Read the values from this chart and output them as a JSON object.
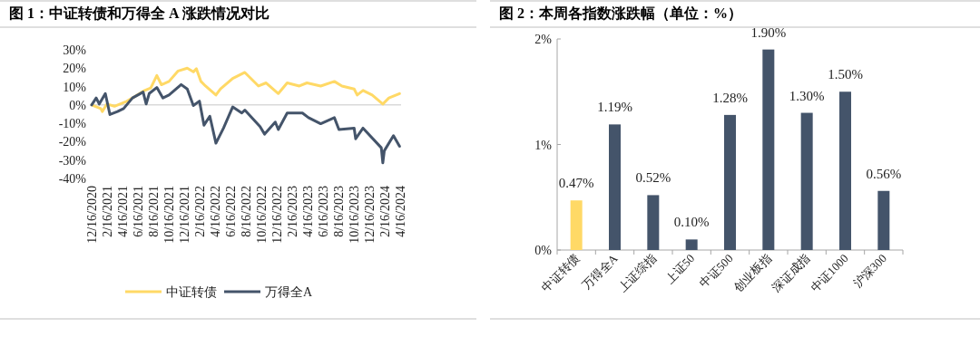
{
  "chart_data": [
    {
      "type": "line",
      "title": "图 1：中证转债和万得全 A 涨跌情况对比",
      "xlim": [
        "2020-12-16",
        "2024-04-19"
      ],
      "xticks": [
        {
          "value": "2020-12-16",
          "label": "12/16/2020"
        },
        {
          "value": "2021-02-16",
          "label": "2/16/2021"
        },
        {
          "value": "2021-04-16",
          "label": "4/16/2021"
        },
        {
          "value": "2021-06-16",
          "label": "6/16/2021"
        },
        {
          "value": "2021-08-16",
          "label": "8/16/2021"
        },
        {
          "value": "2021-10-16",
          "label": "10/16/2021"
        },
        {
          "value": "2021-12-16",
          "label": "12/16/2021"
        },
        {
          "value": "2022-02-16",
          "label": "2/16/2022"
        },
        {
          "value": "2022-04-16",
          "label": "4/16/2022"
        },
        {
          "value": "2022-06-16",
          "label": "6/16/2022"
        },
        {
          "value": "2022-08-16",
          "label": "8/16/2022"
        },
        {
          "value": "2022-10-16",
          "label": "10/16/2022"
        },
        {
          "value": "2022-12-16",
          "label": "12/16/2022"
        },
        {
          "value": "2023-02-16",
          "label": "2/16/2023"
        },
        {
          "value": "2023-04-16",
          "label": "4/16/2023"
        },
        {
          "value": "2023-06-16",
          "label": "6/16/2023"
        },
        {
          "value": "2023-08-16",
          "label": "8/16/2023"
        },
        {
          "value": "2023-10-16",
          "label": "10/16/2023"
        },
        {
          "value": "2023-12-16",
          "label": "12/16/2023"
        },
        {
          "value": "2024-02-16",
          "label": "2/16/2024"
        },
        {
          "value": "2024-04-16",
          "label": "4/16/2024"
        }
      ],
      "ylim": [
        -40,
        30
      ],
      "yticks": [
        {
          "value": -40,
          "label": "-40%"
        },
        {
          "value": -30,
          "label": "-30%"
        },
        {
          "value": -20,
          "label": "-20%"
        },
        {
          "value": -10,
          "label": "-10%"
        },
        {
          "value": 0,
          "label": "0%"
        },
        {
          "value": 10,
          "label": "10%"
        },
        {
          "value": 20,
          "label": "20%"
        },
        {
          "value": 30,
          "label": "30%"
        }
      ],
      "legend": "bottom",
      "series": [
        {
          "name": "中证转债",
          "color": "#ffd966",
          "x": [
            "2020-12-16",
            "2021-01-21",
            "2021-01-27",
            "2021-02-14",
            "2021-03-16",
            "2021-05-03",
            "2021-05-26",
            "2021-07-13",
            "2021-08-06",
            "2021-08-30",
            "2021-09-17",
            "2021-10-17",
            "2021-11-22",
            "2021-12-28",
            "2022-01-21",
            "2022-02-02",
            "2022-02-20",
            "2022-03-10",
            "2022-04-20",
            "2022-05-08",
            "2022-06-25",
            "2022-08-12",
            "2022-10-05",
            "2022-11-04",
            "2022-12-22",
            "2023-01-26",
            "2023-03-15",
            "2023-04-14",
            "2023-06-07",
            "2023-07-31",
            "2023-08-30",
            "2023-10-17",
            "2023-10-29",
            "2023-11-21",
            "2023-12-27",
            "2024-02-07",
            "2024-03-02",
            "2024-04-13"
          ],
          "values": [
            0,
            -2,
            -3.6,
            0.5,
            -0.7,
            2,
            3.8,
            7.9,
            9.2,
            16,
            11,
            12.8,
            18.5,
            20,
            18,
            19.7,
            12.8,
            10.3,
            5.4,
            8.7,
            14.4,
            17.7,
            10.3,
            12,
            6.2,
            12,
            10.3,
            12,
            10.3,
            12.8,
            10.3,
            8.7,
            5.4,
            7.9,
            5.4,
            0.5,
            3.8,
            6.2
          ]
        },
        {
          "name": "万得全A",
          "color": "#44546a",
          "x": [
            "2020-12-16",
            "2021-01-03",
            "2021-01-15",
            "2021-02-08",
            "2021-02-26",
            "2021-03-28",
            "2021-04-21",
            "2021-05-26",
            "2021-07-07",
            "2021-07-19",
            "2021-07-31",
            "2021-08-30",
            "2021-09-23",
            "2021-10-17",
            "2021-12-04",
            "2021-12-28",
            "2022-01-21",
            "2022-02-14",
            "2022-03-04",
            "2022-03-27",
            "2022-04-20",
            "2022-05-20",
            "2022-06-25",
            "2022-07-31",
            "2022-08-12",
            "2022-10-11",
            "2022-10-29",
            "2022-12-10",
            "2022-12-22",
            "2023-01-26",
            "2023-03-27",
            "2023-04-20",
            "2023-06-07",
            "2023-07-31",
            "2023-08-18",
            "2023-10-17",
            "2023-10-23",
            "2023-11-21",
            "2024-02-01",
            "2024-02-07",
            "2024-02-13",
            "2024-03-20",
            "2024-04-13"
          ],
          "values": [
            0,
            3.8,
            0.5,
            6.2,
            -5.2,
            -3.6,
            -2,
            3.8,
            7,
            0.5,
            6.2,
            9.5,
            3.8,
            5.4,
            11.1,
            8.7,
            -0.3,
            2.1,
            -11,
            -6.1,
            -20.8,
            -12.6,
            -1.1,
            -4.4,
            -2.8,
            -11.8,
            -15.9,
            -9.3,
            -13.4,
            -4.4,
            -4.4,
            -6.9,
            -10.2,
            -6.9,
            -13.4,
            -12.6,
            -18.4,
            -12.6,
            -23.3,
            -31.5,
            -24.9,
            -16.7,
            -22.5
          ]
        }
      ]
    },
    {
      "type": "bar",
      "title": "图 2：本周各指数涨跌幅（单位：%）",
      "categories": [
        "中证转债",
        "万得全A",
        "上证综指",
        "上证50",
        "中证500",
        "创业板指",
        "深证成指",
        "中证1000",
        "沪深300"
      ],
      "values": [
        0.47,
        1.19,
        0.52,
        0.1,
        1.28,
        1.9,
        1.3,
        1.5,
        0.56
      ],
      "colors": [
        "#ffd966",
        "#44546a",
        "#44546a",
        "#44546a",
        "#44546a",
        "#44546a",
        "#44546a",
        "#44546a",
        "#44546a"
      ],
      "value_labels": [
        "0.47%",
        "1.19%",
        "0.52%",
        "0.10%",
        "1.28%",
        "1.90%",
        "1.30%",
        "1.50%",
        "0.56%"
      ],
      "ylim": [
        0,
        2
      ],
      "yticks": [
        {
          "value": 0,
          "label": "0%"
        },
        {
          "value": 1,
          "label": "1%"
        },
        {
          "value": 2,
          "label": "2%"
        }
      ]
    }
  ]
}
